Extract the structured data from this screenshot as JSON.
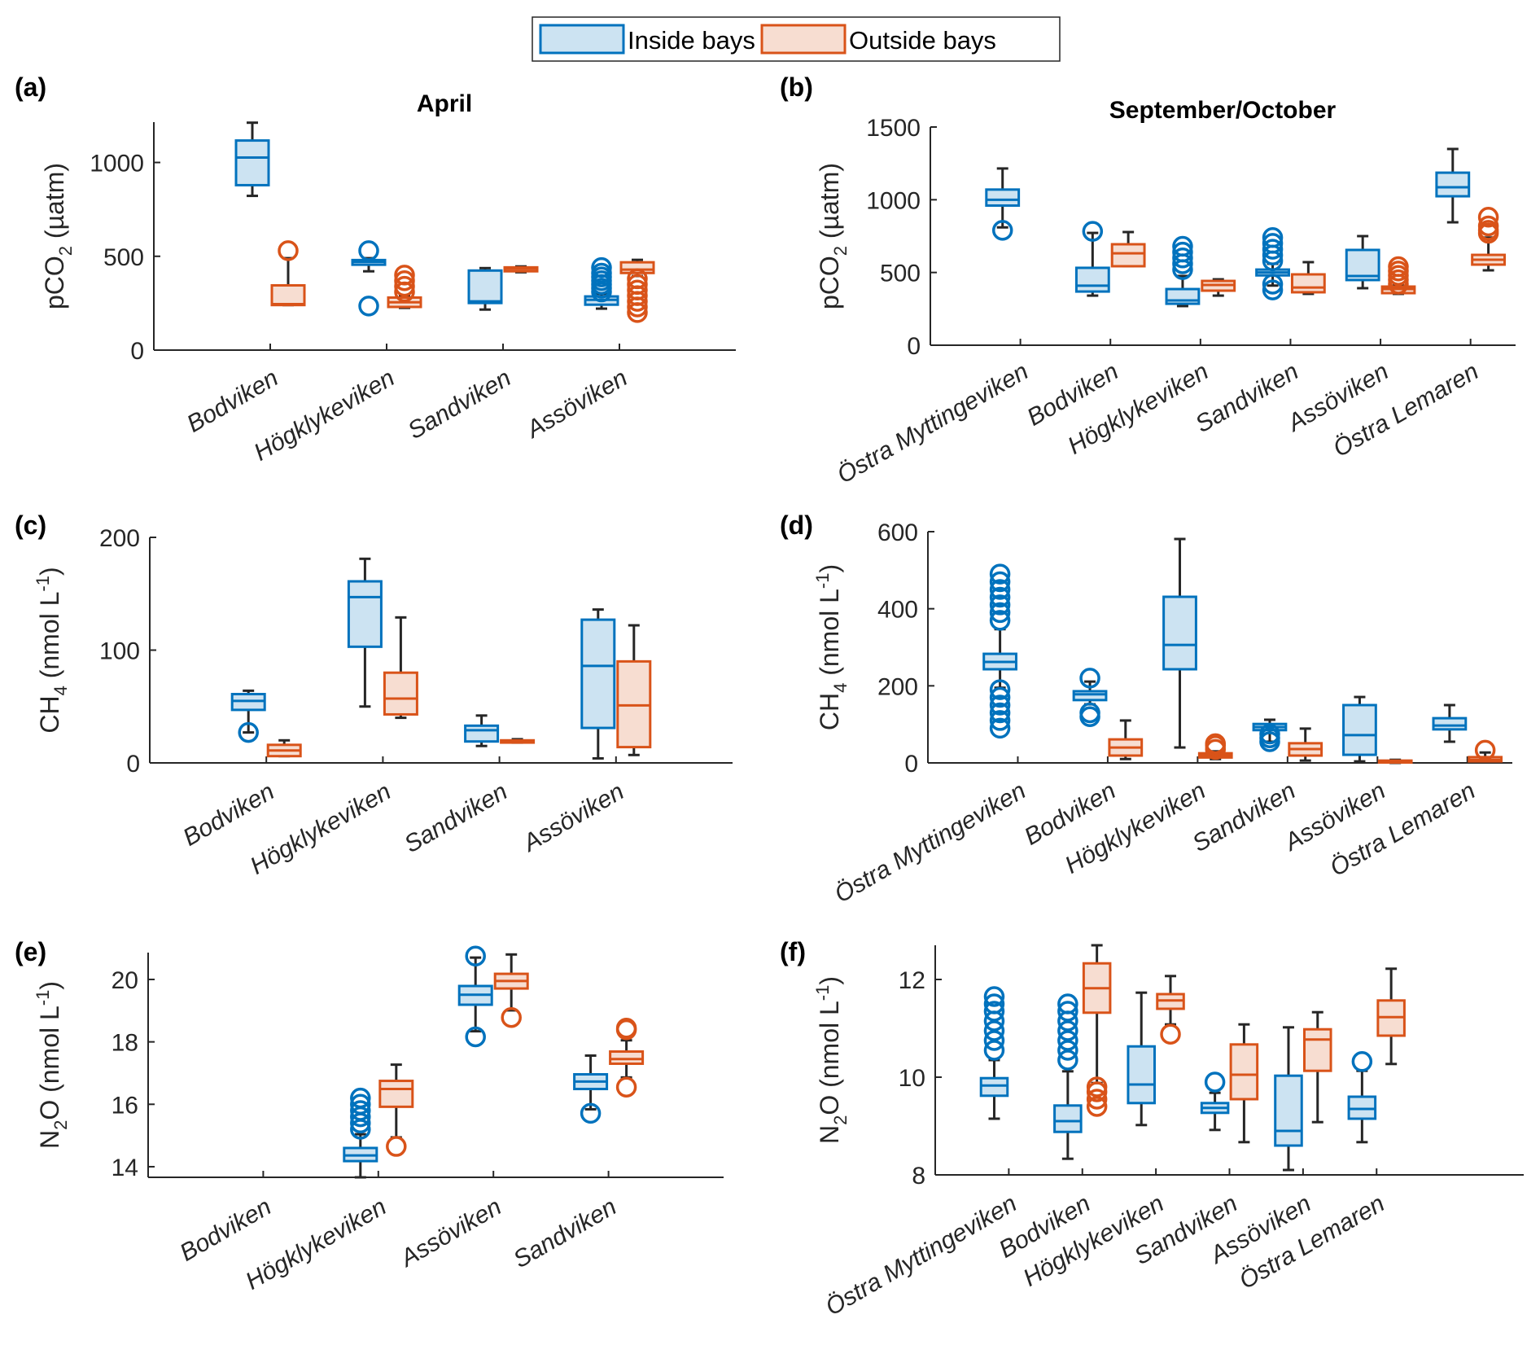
{
  "legend": {
    "items": [
      {
        "label": "Inside bays",
        "stroke": "#0072BD",
        "fill": "#CCE3F2"
      },
      {
        "label": "Outside bays",
        "stroke": "#D95319",
        "fill": "#F7DDD1"
      }
    ]
  },
  "colors": {
    "inside": "#0072BD",
    "inside_fill": "#CCE3F2",
    "outside": "#D95319",
    "outside_fill": "#F7DDD1",
    "whisker": "#262626",
    "axis": "#262626"
  },
  "chart_data": [
    {
      "id": "a",
      "panel_label": "(a)",
      "type": "box",
      "title": "April",
      "ylabel": "pCO2 (µatm)",
      "ylabel_main": "pCO",
      "ylabel_sub": "2",
      "ylabel_rest": " (µatm)",
      "ylabel_sup": "",
      "ylim": [
        0,
        1215
      ],
      "yticks": [
        0,
        500,
        1000
      ],
      "xlim": [
        0,
        5
      ],
      "categories": [
        "Bodviken",
        "Högklykeviken",
        "Sandviken",
        "Assöviken"
      ],
      "series": [
        {
          "name": "Inside bays",
          "boxes": [
            {
              "min": 822,
              "q1": 879,
              "median": 1026,
              "q3": 1117,
              "max": 1212,
              "outliers": []
            },
            {
              "min": 420,
              "q1": 455,
              "median": 470,
              "q3": 480,
              "max": 490,
              "outliers": [
                530,
                235
              ]
            },
            {
              "min": 216,
              "q1": 251,
              "median": 260,
              "q3": 424,
              "max": 437,
              "outliers": []
            },
            {
              "min": 221,
              "q1": 242,
              "median": 268,
              "q3": 286,
              "max": 300,
              "outliers": [
                310,
                330,
                350,
                370,
                390,
                410,
                440
              ]
            }
          ]
        },
        {
          "name": "Outside bays",
          "boxes": [
            {
              "min": 240,
              "q1": 240,
              "median": 245,
              "q3": 345,
              "max": 490,
              "outliers": [
                530
              ]
            },
            {
              "min": 225,
              "q1": 230,
              "median": 255,
              "q3": 280,
              "max": 290,
              "outliers": [
                310,
                340,
                370,
                400
              ]
            },
            {
              "min": 415,
              "q1": 420,
              "median": 433,
              "q3": 441,
              "max": 446,
              "outliers": []
            },
            {
              "min": 395,
              "q1": 411,
              "median": 429,
              "q3": 468,
              "max": 481,
              "outliers": [
                200,
                230,
                260,
                290,
                320,
                350,
                380
              ]
            }
          ]
        }
      ]
    },
    {
      "id": "b",
      "panel_label": "(b)",
      "type": "box",
      "title": "September/October",
      "ylabel": "pCO2 (µatm)",
      "ylabel_main": "pCO",
      "ylabel_sub": "2",
      "ylabel_rest": " (µatm)",
      "ylabel_sup": "",
      "ylim": [
        0,
        1500
      ],
      "yticks": [
        0,
        500,
        1000,
        1500
      ],
      "xlim": [
        0,
        6.5
      ],
      "categories": [
        "Östra Myttingeviken",
        "Bodviken",
        "Högklykeviken",
        "Sandviken",
        "Assöviken",
        "Östra Lemaren"
      ],
      "series": [
        {
          "name": "Inside bays",
          "boxes": [
            {
              "min": 810,
              "q1": 960,
              "median": 1000,
              "q3": 1070,
              "max": 1215,
              "outliers": [
                790
              ]
            },
            {
              "min": 341,
              "q1": 369,
              "median": 409,
              "q3": 532,
              "max": 772,
              "outliers": [
                783
              ]
            },
            {
              "min": 269,
              "q1": 285,
              "median": 308,
              "q3": 386,
              "max": 476,
              "outliers": [
                520,
                560,
                600,
                640,
                680
              ]
            },
            {
              "min": 410,
              "q1": 480,
              "median": 500,
              "q3": 520,
              "max": 560,
              "outliers": [
                380,
                420,
                580,
                620,
                660,
                700,
                740
              ]
            },
            {
              "min": 392,
              "q1": 448,
              "median": 476,
              "q3": 655,
              "max": 750,
              "outliers": []
            },
            {
              "min": 845,
              "q1": 1024,
              "median": 1086,
              "q3": 1186,
              "max": 1349,
              "outliers": []
            }
          ]
        },
        {
          "name": "Outside bays",
          "boxes": [
            null,
            {
              "min": 543,
              "q1": 543,
              "median": 632,
              "q3": 694,
              "max": 778,
              "outliers": []
            },
            {
              "min": 341,
              "q1": 375,
              "median": 414,
              "q3": 442,
              "max": 453,
              "outliers": []
            },
            {
              "min": 353,
              "q1": 364,
              "median": 397,
              "q3": 487,
              "max": 571,
              "outliers": []
            },
            {
              "min": 353,
              "q1": 358,
              "median": 386,
              "q3": 403,
              "max": 410,
              "outliers": [
                420,
                450,
                480,
                510,
                540
              ]
            },
            {
              "min": 515,
              "q1": 554,
              "median": 588,
              "q3": 621,
              "max": 740,
              "outliers": [
                770,
                790,
                820,
                880
              ]
            }
          ]
        }
      ]
    },
    {
      "id": "c",
      "panel_label": "(c)",
      "type": "box",
      "title": "",
      "ylabel": "CH4 (nmol L-1)",
      "ylabel_main": "CH",
      "ylabel_sub": "4",
      "ylabel_rest": " (nmol L",
      "ylabel_sup": "-1",
      "ylim": [
        0,
        200
      ],
      "yticks": [
        0,
        100,
        200
      ],
      "xlim": [
        0,
        5
      ],
      "categories": [
        "Bodviken",
        "Högklykeviken",
        "Sandviken",
        "Assöviken"
      ],
      "series": [
        {
          "name": "Inside bays",
          "boxes": [
            {
              "min": 27,
              "q1": 47,
              "median": 55,
              "q3": 61,
              "max": 64,
              "outliers": [
                27
              ]
            },
            {
              "min": 50,
              "q1": 103,
              "median": 147,
              "q3": 161,
              "max": 181,
              "outliers": []
            },
            {
              "min": 15,
              "q1": 19,
              "median": 29,
              "q3": 33,
              "max": 42,
              "outliers": []
            },
            {
              "min": 4,
              "q1": 31,
              "median": 86,
              "q3": 127,
              "max": 136,
              "outliers": []
            }
          ]
        },
        {
          "name": "Outside bays",
          "boxes": [
            {
              "min": 6,
              "q1": 6,
              "median": 11,
              "q3": 16,
              "max": 20,
              "outliers": []
            },
            {
              "min": 40,
              "q1": 43,
              "median": 57,
              "q3": 80,
              "max": 129,
              "outliers": []
            },
            {
              "min": 18,
              "q1": 18,
              "median": 19,
              "q3": 20,
              "max": 21,
              "outliers": []
            },
            {
              "min": 7,
              "q1": 14,
              "median": 51,
              "q3": 90,
              "max": 122,
              "outliers": []
            }
          ]
        }
      ]
    },
    {
      "id": "d",
      "panel_label": "(d)",
      "type": "box",
      "title": "",
      "ylabel": "CH4 (nmol L-1)",
      "ylabel_main": "CH",
      "ylabel_sub": "4",
      "ylabel_rest": " (nmol L",
      "ylabel_sup": "-1",
      "ylim": [
        0,
        600
      ],
      "yticks": [
        0,
        200,
        400,
        600
      ],
      "xlim": [
        0,
        6.5
      ],
      "categories": [
        "Östra Myttingeviken",
        "Bodviken",
        "Högklykeviken",
        "Sandviken",
        "Assöviken",
        "Östra Lemaren"
      ],
      "series": [
        {
          "name": "Inside bays",
          "boxes": [
            {
              "min": 195,
              "q1": 243,
              "median": 262,
              "q3": 283,
              "max": 347,
              "outliers": [
                90,
                110,
                130,
                150,
                170,
                190,
                370,
                390,
                410,
                430,
                450,
                470,
                490
              ]
            },
            {
              "min": 152,
              "q1": 163,
              "median": 178,
              "q3": 186,
              "max": 211,
              "outliers": [
                120,
                130,
                220
              ]
            },
            {
              "min": 40,
              "q1": 243,
              "median": 306,
              "q3": 431,
              "max": 581,
              "outliers": []
            },
            {
              "min": 55,
              "q1": 85,
              "median": 93,
              "q3": 101,
              "max": 112,
              "outliers": [
                55,
                65,
                75
              ]
            },
            {
              "min": 4,
              "q1": 21,
              "median": 72,
              "q3": 150,
              "max": 171,
              "outliers": []
            },
            {
              "min": 55,
              "q1": 87,
              "median": 97,
              "q3": 116,
              "max": 150,
              "outliers": []
            }
          ]
        },
        {
          "name": "Outside bays",
          "boxes": [
            null,
            {
              "min": 10,
              "q1": 19,
              "median": 40,
              "q3": 61,
              "max": 110,
              "outliers": []
            },
            {
              "min": 10,
              "q1": 14,
              "median": 20,
              "q3": 25,
              "max": 30,
              "outliers": [
                35,
                45,
                50
              ]
            },
            {
              "min": 6,
              "q1": 19,
              "median": 36,
              "q3": 51,
              "max": 89,
              "outliers": []
            },
            {
              "min": 0,
              "q1": 1,
              "median": 3,
              "q3": 6,
              "max": 8,
              "outliers": []
            },
            {
              "min": 2,
              "q1": 4,
              "median": 8,
              "q3": 15,
              "max": 27,
              "outliers": [
                33
              ]
            }
          ]
        }
      ]
    },
    {
      "id": "e",
      "panel_label": "(e)",
      "type": "box",
      "title": "",
      "ylabel": "N2O (nmol L-1)",
      "ylabel_main": "N",
      "ylabel_sub": "2",
      "ylabel_rest": "O (nmol L",
      "ylabel_sup": "-1",
      "ylim": [
        13.66,
        20.86
      ],
      "yticks": [
        14,
        16,
        18,
        20
      ],
      "xlim": [
        0,
        5
      ],
      "categories": [
        "Bodviken",
        "Högklykeviken",
        "Assöviken",
        "Sandviken"
      ],
      "series": [
        {
          "name": "Inside bays",
          "boxes": [
            null,
            {
              "min": 13.66,
              "q1": 14.18,
              "median": 14.36,
              "q3": 14.6,
              "max": 15.04,
              "outliers": [
                15.2,
                15.4,
                15.6,
                15.8,
                16.0,
                16.2
              ]
            },
            {
              "min": 18.34,
              "q1": 19.19,
              "median": 19.51,
              "q3": 19.79,
              "max": 20.7,
              "outliers": [
                20.75,
                18.16
              ]
            },
            {
              "min": 15.84,
              "q1": 16.49,
              "median": 16.73,
              "q3": 16.96,
              "max": 17.56,
              "outliers": [
                15.71
              ]
            }
          ]
        },
        {
          "name": "Outside bays",
          "boxes": [
            null,
            {
              "min": 14.94,
              "q1": 15.92,
              "median": 16.49,
              "q3": 16.75,
              "max": 17.27,
              "outliers": [
                14.65
              ]
            },
            {
              "min": 19.01,
              "q1": 19.71,
              "median": 19.95,
              "q3": 20.18,
              "max": 20.8,
              "outliers": [
                18.78
              ]
            },
            {
              "min": 16.86,
              "q1": 17.3,
              "median": 17.45,
              "q3": 17.69,
              "max": 18.05,
              "outliers": [
                18.39,
                18.44,
                16.55
              ]
            }
          ]
        }
      ]
    },
    {
      "id": "f",
      "panel_label": "(f)",
      "type": "box",
      "title": "",
      "ylabel": "N2O (nmol L-1)",
      "ylabel_main": "N",
      "ylabel_sub": "2",
      "ylabel_rest": "O (nmol L",
      "ylabel_sup": "-1",
      "ylim": [
        8,
        12.7
      ],
      "yticks": [
        8,
        10,
        12
      ],
      "xlim": [
        0,
        8
      ],
      "categories": [
        "Östra Myttingeviken",
        "Bodviken",
        "Högklykeviken",
        "Sandviken",
        "Assöviken",
        "Östra Lemaren"
      ],
      "series": [
        {
          "name": "Inside bays",
          "boxes": [
            {
              "min": 9.15,
              "q1": 9.62,
              "median": 9.83,
              "q3": 9.98,
              "max": 10.35,
              "outliers": [
                10.55,
                10.75,
                10.95,
                11.15,
                11.35,
                11.5,
                11.65
              ]
            },
            {
              "min": 8.33,
              "q1": 8.88,
              "median": 9.1,
              "q3": 9.42,
              "max": 10.12,
              "outliers": [
                10.35,
                10.55,
                10.75,
                10.95,
                11.15,
                11.35,
                11.5
              ]
            },
            {
              "min": 9.02,
              "q1": 9.47,
              "median": 9.85,
              "q3": 10.63,
              "max": 11.73,
              "outliers": []
            },
            {
              "min": 8.92,
              "q1": 9.27,
              "median": 9.37,
              "q3": 9.47,
              "max": 9.68,
              "outliers": [
                9.9
              ]
            },
            {
              "min": 8.1,
              "q1": 8.6,
              "median": 8.9,
              "q3": 10.03,
              "max": 11.02,
              "outliers": []
            },
            {
              "min": 8.67,
              "q1": 9.15,
              "median": 9.35,
              "q3": 9.6,
              "max": 10.13,
              "outliers": [
                10.32
              ]
            }
          ]
        },
        {
          "name": "Outside bays",
          "boxes": [
            null,
            {
              "min": 9.88,
              "q1": 11.32,
              "median": 11.82,
              "q3": 12.33,
              "max": 12.7,
              "outliers": [
                9.4,
                9.55,
                9.7,
                9.8
              ]
            },
            {
              "min": 11.08,
              "q1": 11.4,
              "median": 11.57,
              "q3": 11.7,
              "max": 12.07,
              "outliers": [
                10.88
              ]
            },
            {
              "min": 8.67,
              "q1": 9.55,
              "median": 10.05,
              "q3": 10.67,
              "max": 11.08,
              "outliers": []
            },
            {
              "min": 9.08,
              "q1": 10.13,
              "median": 10.77,
              "q3": 10.98,
              "max": 11.33,
              "outliers": []
            },
            {
              "min": 10.27,
              "q1": 10.85,
              "median": 11.23,
              "q3": 11.57,
              "max": 12.22,
              "outliers": []
            }
          ]
        }
      ]
    }
  ]
}
